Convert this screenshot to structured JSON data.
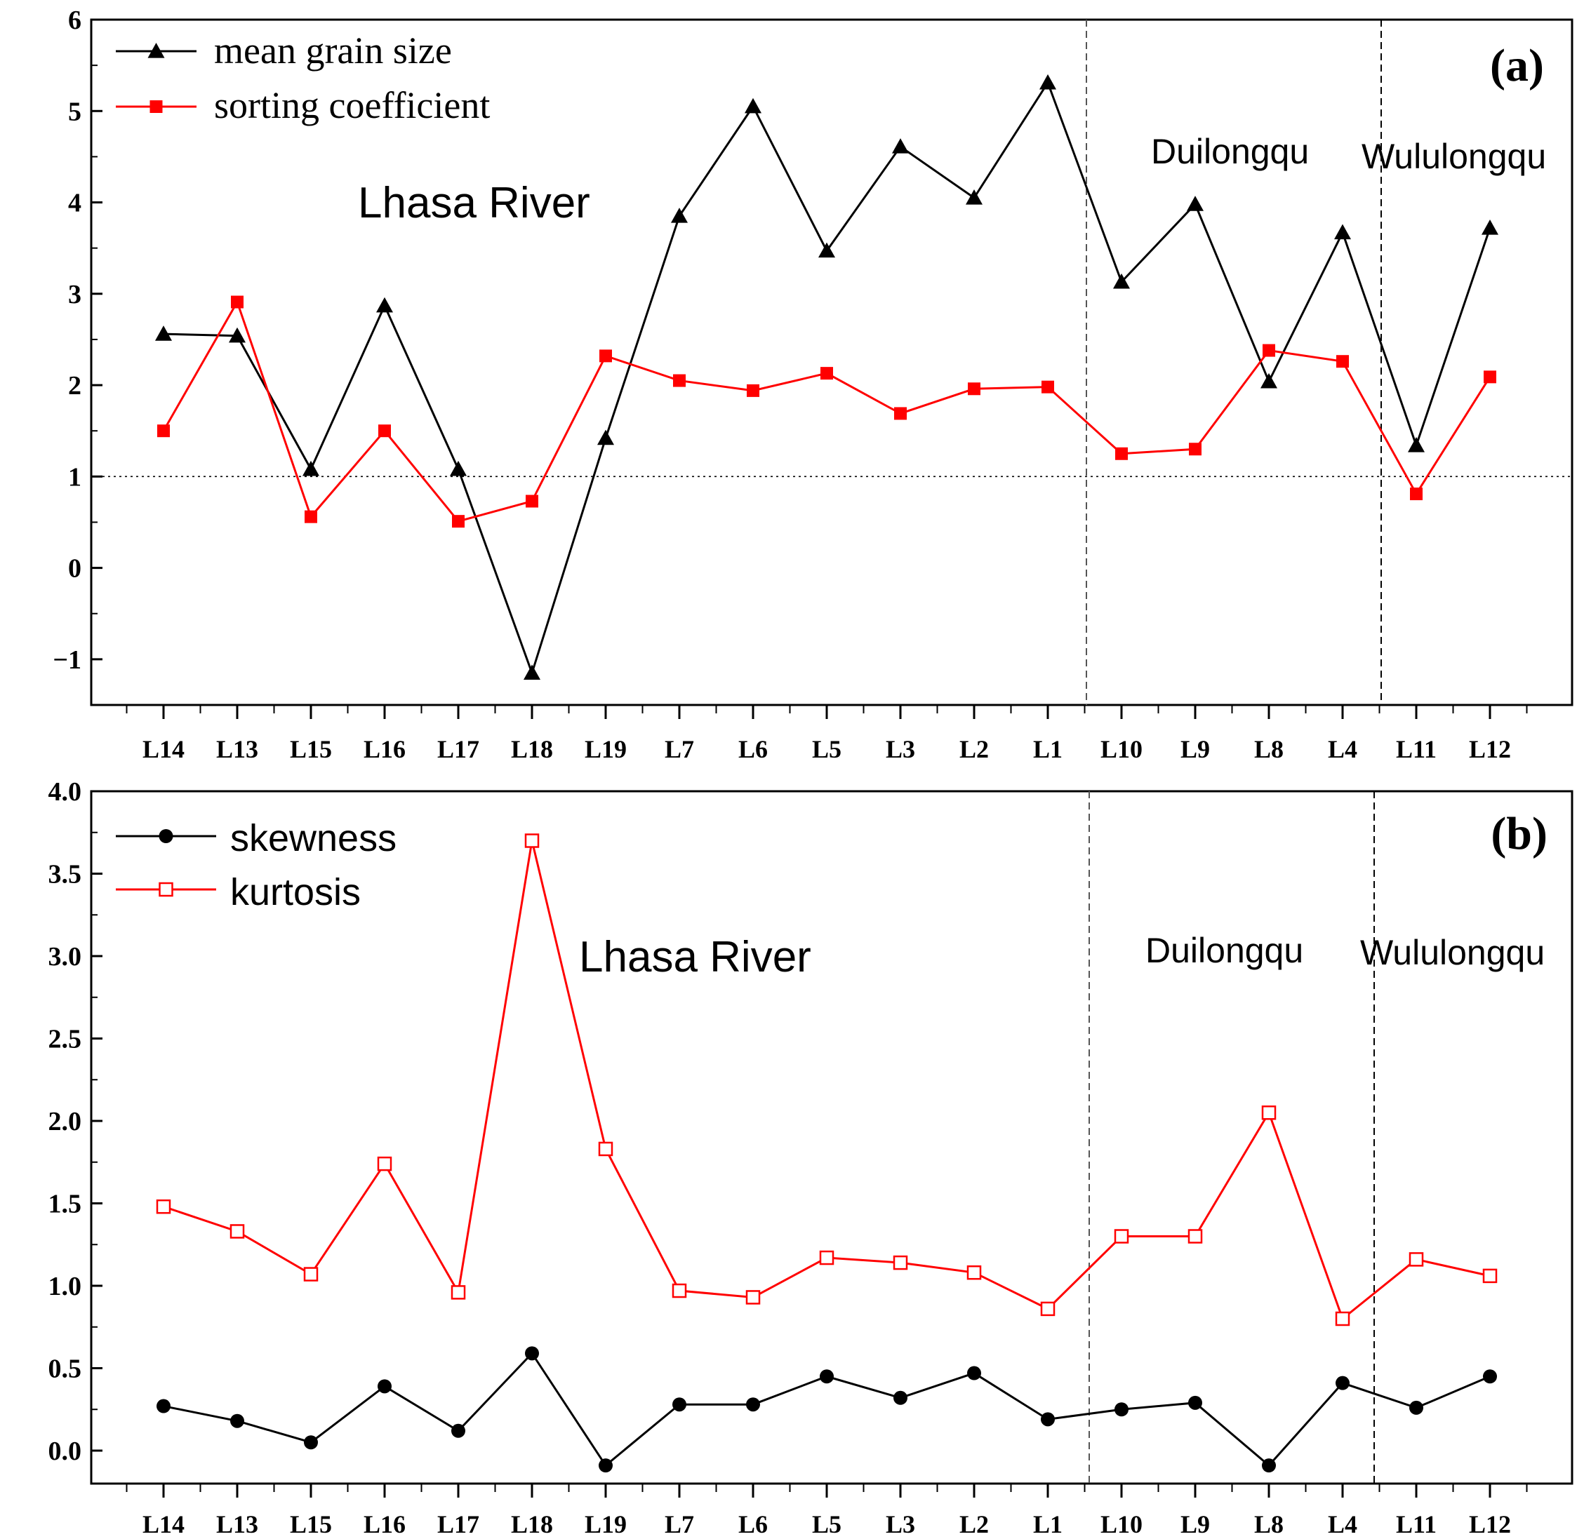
{
  "chart_data": [
    {
      "type": "line",
      "panel_label": "(a)",
      "categories": [
        "L14",
        "L13",
        "L15",
        "L16",
        "L17",
        "L18",
        "L19",
        "L7",
        "L6",
        "L5",
        "L3",
        "L2",
        "L1",
        "L10",
        "L9",
        "L8",
        "L4",
        "L11",
        "L12"
      ],
      "ylim": [
        -1.5,
        6
      ],
      "yticks": [
        -1,
        0,
        1,
        2,
        3,
        4,
        5,
        6
      ],
      "ytick_labels": [
        "−1",
        "0",
        "1",
        "2",
        "3",
        "4",
        "5",
        "6"
      ],
      "reference_line_y": 1,
      "series": [
        {
          "name": "mean grain size",
          "color": "#000000",
          "marker": "triangle",
          "values": [
            2.56,
            2.54,
            1.08,
            2.87,
            1.08,
            -1.15,
            1.42,
            3.85,
            5.05,
            3.47,
            4.61,
            4.05,
            5.31,
            3.13,
            3.98,
            2.04,
            3.67,
            1.34,
            3.72
          ]
        },
        {
          "name": "sorting coefficient",
          "color": "#ff0000",
          "marker": "square",
          "values": [
            1.5,
            2.91,
            0.56,
            1.5,
            0.51,
            0.73,
            2.32,
            2.05,
            1.94,
            2.13,
            1.69,
            1.96,
            1.98,
            1.25,
            1.3,
            2.38,
            2.26,
            0.81,
            2.09
          ]
        }
      ],
      "regions": [
        "Lhasa River",
        "Duilongqu",
        "Wululongqu"
      ]
    },
    {
      "type": "line",
      "panel_label": "(b)",
      "categories": [
        "L14",
        "L13",
        "L15",
        "L16",
        "L17",
        "L18",
        "L19",
        "L7",
        "L6",
        "L5",
        "L3",
        "L2",
        "L1",
        "L10",
        "L9",
        "L8",
        "L4",
        "L11",
        "L12"
      ],
      "ylim": [
        -0.2,
        4.0
      ],
      "yticks": [
        0.0,
        0.5,
        1.0,
        1.5,
        2.0,
        2.5,
        3.0,
        3.5,
        4.0
      ],
      "ytick_labels": [
        "0.0",
        "0.5",
        "1.0",
        "1.5",
        "2.0",
        "2.5",
        "3.0",
        "3.5",
        "4.0"
      ],
      "series": [
        {
          "name": "skewness",
          "color": "#000000",
          "marker": "circle",
          "values": [
            0.27,
            0.18,
            0.05,
            0.39,
            0.12,
            0.59,
            -0.09,
            0.28,
            0.28,
            0.45,
            0.32,
            0.47,
            0.19,
            0.25,
            0.29,
            -0.09,
            0.41,
            0.26,
            0.45
          ]
        },
        {
          "name": "kurtosis",
          "color": "#ff0000",
          "marker": "open-square",
          "values": [
            1.48,
            1.33,
            1.07,
            1.74,
            0.96,
            3.7,
            1.83,
            0.97,
            0.93,
            1.17,
            1.14,
            1.08,
            0.86,
            1.3,
            1.3,
            2.05,
            0.8,
            1.16,
            1.06
          ]
        }
      ],
      "regions": [
        "Lhasa River",
        "Duilongqu",
        "Wululongqu"
      ]
    }
  ]
}
